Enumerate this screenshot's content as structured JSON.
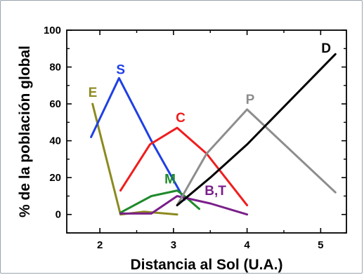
{
  "chart_data": {
    "type": "line",
    "xlabel": "Distancia al Sol (U.A.)",
    "ylabel": "% de la población global",
    "xlim": [
      1.55,
      5.35
    ],
    "ylim": [
      -10,
      100
    ],
    "x_ticks": [
      2,
      3,
      4,
      5
    ],
    "y_ticks": [
      0,
      20,
      40,
      60,
      80,
      100
    ],
    "grid": false,
    "legend": "none",
    "series": [
      {
        "name": "E",
        "color": "#8c8a1e",
        "x": [
          1.9,
          2.28,
          2.6,
          3.05
        ],
        "y": [
          60,
          0,
          1.5,
          0
        ]
      },
      {
        "name": "S",
        "color": "#1f3fe6",
        "x": [
          1.88,
          2.26,
          2.7,
          3.15
        ],
        "y": [
          42,
          74,
          40,
          8
        ]
      },
      {
        "name": "C",
        "color": "#f01d1d",
        "x": [
          2.28,
          2.68,
          3.05,
          3.45,
          4.0
        ],
        "y": [
          13,
          38,
          47,
          33,
          5
        ]
      },
      {
        "name": "M",
        "color": "#1f8a2b",
        "x": [
          2.28,
          2.7,
          3.05,
          3.15,
          3.35
        ],
        "y": [
          1,
          10,
          13,
          10,
          3
        ]
      },
      {
        "name": "B,T",
        "color": "#7a1f8a",
        "x": [
          2.28,
          2.7,
          3.05,
          3.5,
          4.0
        ],
        "y": [
          0.5,
          0.5,
          10,
          6,
          0
        ]
      },
      {
        "name": "P",
        "color": "#8d8d8d",
        "x": [
          3.05,
          3.45,
          4.0,
          5.2
        ],
        "y": [
          5,
          33,
          57,
          12
        ]
      },
      {
        "name": "D",
        "color": "#000000",
        "x": [
          3.05,
          3.5,
          4.0,
          5.2
        ],
        "y": [
          5,
          20,
          38,
          87
        ]
      }
    ]
  }
}
